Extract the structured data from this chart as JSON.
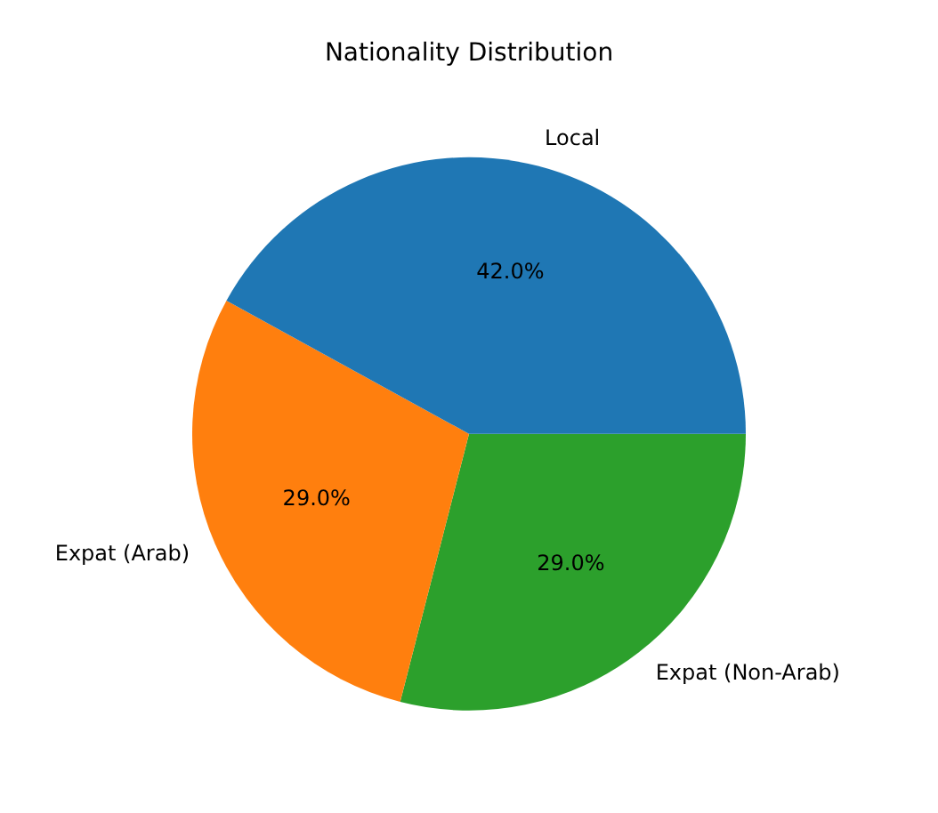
{
  "chart_data": {
    "type": "pie",
    "title": "Nationality Distribution",
    "categories": [
      "Local",
      "Expat (Arab)",
      "Expat (Non-Arab)"
    ],
    "values": [
      42.0,
      29.0,
      29.0
    ],
    "colors": [
      "#1f77b4",
      "#ff7f0e",
      "#2ca02c"
    ],
    "value_labels": [
      "42.0%",
      "29.0%",
      "29.0%"
    ],
    "legend": false
  }
}
